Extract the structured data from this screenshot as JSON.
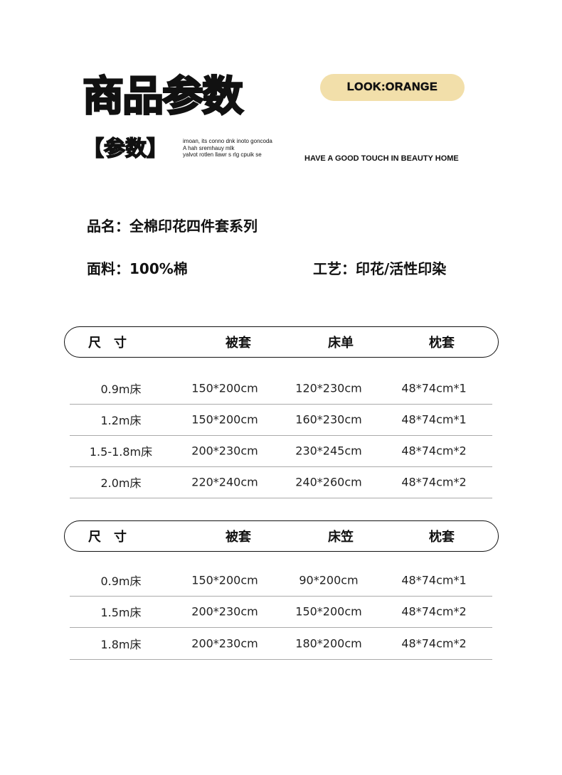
{
  "header": {
    "title": "商品参数",
    "badge": "LOOK:ORANGE",
    "subtitle": "【参数】",
    "small_text": [
      "imoan, its conno dnk inoto goncoda",
      "A hah sremhauy mlk",
      "yalvot rotlen llawr s rlg cpuik se"
    ],
    "slogan": "HAVE A GOOD TOUCH IN BEAUTY HOME"
  },
  "info": {
    "name": "品名：全棉印花四件套系列",
    "fabric": "面料：100%棉",
    "process": "工艺：印花/活性印染"
  },
  "badge_color": "#f2dfaa",
  "tables": [
    {
      "headers": [
        "尺　寸",
        "被套",
        "床单",
        "枕套"
      ],
      "rows": [
        [
          "0.9m床",
          "150*200cm",
          "120*230cm",
          "48*74cm*1"
        ],
        [
          "1.2m床",
          "150*200cm",
          "160*230cm",
          "48*74cm*1"
        ],
        [
          "1.5-1.8m床",
          "200*230cm",
          "230*245cm",
          "48*74cm*2"
        ],
        [
          "2.0m床",
          "220*240cm",
          "240*260cm",
          "48*74cm*2"
        ]
      ]
    },
    {
      "headers": [
        "尺　寸",
        "被套",
        "床笠",
        "枕套"
      ],
      "rows": [
        [
          "0.9m床",
          "150*200cm",
          "90*200cm",
          "48*74cm*1"
        ],
        [
          "1.5m床",
          "200*230cm",
          "150*200cm",
          "48*74cm*2"
        ],
        [
          "1.8m床",
          "200*230cm",
          "180*200cm",
          "48*74cm*2"
        ]
      ]
    }
  ]
}
